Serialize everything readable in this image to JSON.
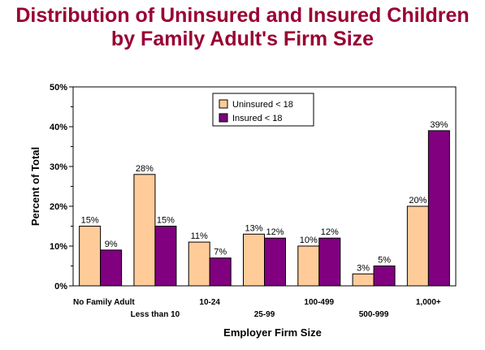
{
  "header": {
    "title_line1": "Distribution of Uninsured and Insured Children",
    "title_line2": "by Family Adult's Firm Size"
  },
  "chart_data": {
    "type": "bar",
    "title": "Distribution of Uninsured and Insured Children by Family Adult's Firm Size",
    "xlabel": "Employer Firm Size",
    "ylabel": "Percent of Total",
    "ylim": [
      0,
      50
    ],
    "y_ticks": [
      "0%",
      "10%",
      "20%",
      "30%",
      "40%",
      "50%"
    ],
    "categories": [
      "No Family Adult",
      "Less than 10",
      "10-24",
      "25-99",
      "100-499",
      "500-999",
      "1,000+"
    ],
    "series": [
      {
        "name": "Uninsured < 18",
        "color": "#ffcc99",
        "values": [
          15,
          28,
          11,
          13,
          10,
          3,
          20
        ],
        "labels": [
          "15%",
          "28%",
          "11%",
          "13%",
          "10%",
          "3%",
          "20%"
        ]
      },
      {
        "name": "Insured < 18",
        "color": "#800080",
        "values": [
          9,
          15,
          7,
          12,
          12,
          5,
          39
        ],
        "labels": [
          "9%",
          "15%",
          "7%",
          "12%",
          "12%",
          "5%",
          "39%"
        ]
      }
    ],
    "legend_position": "top-center",
    "grid": false
  }
}
